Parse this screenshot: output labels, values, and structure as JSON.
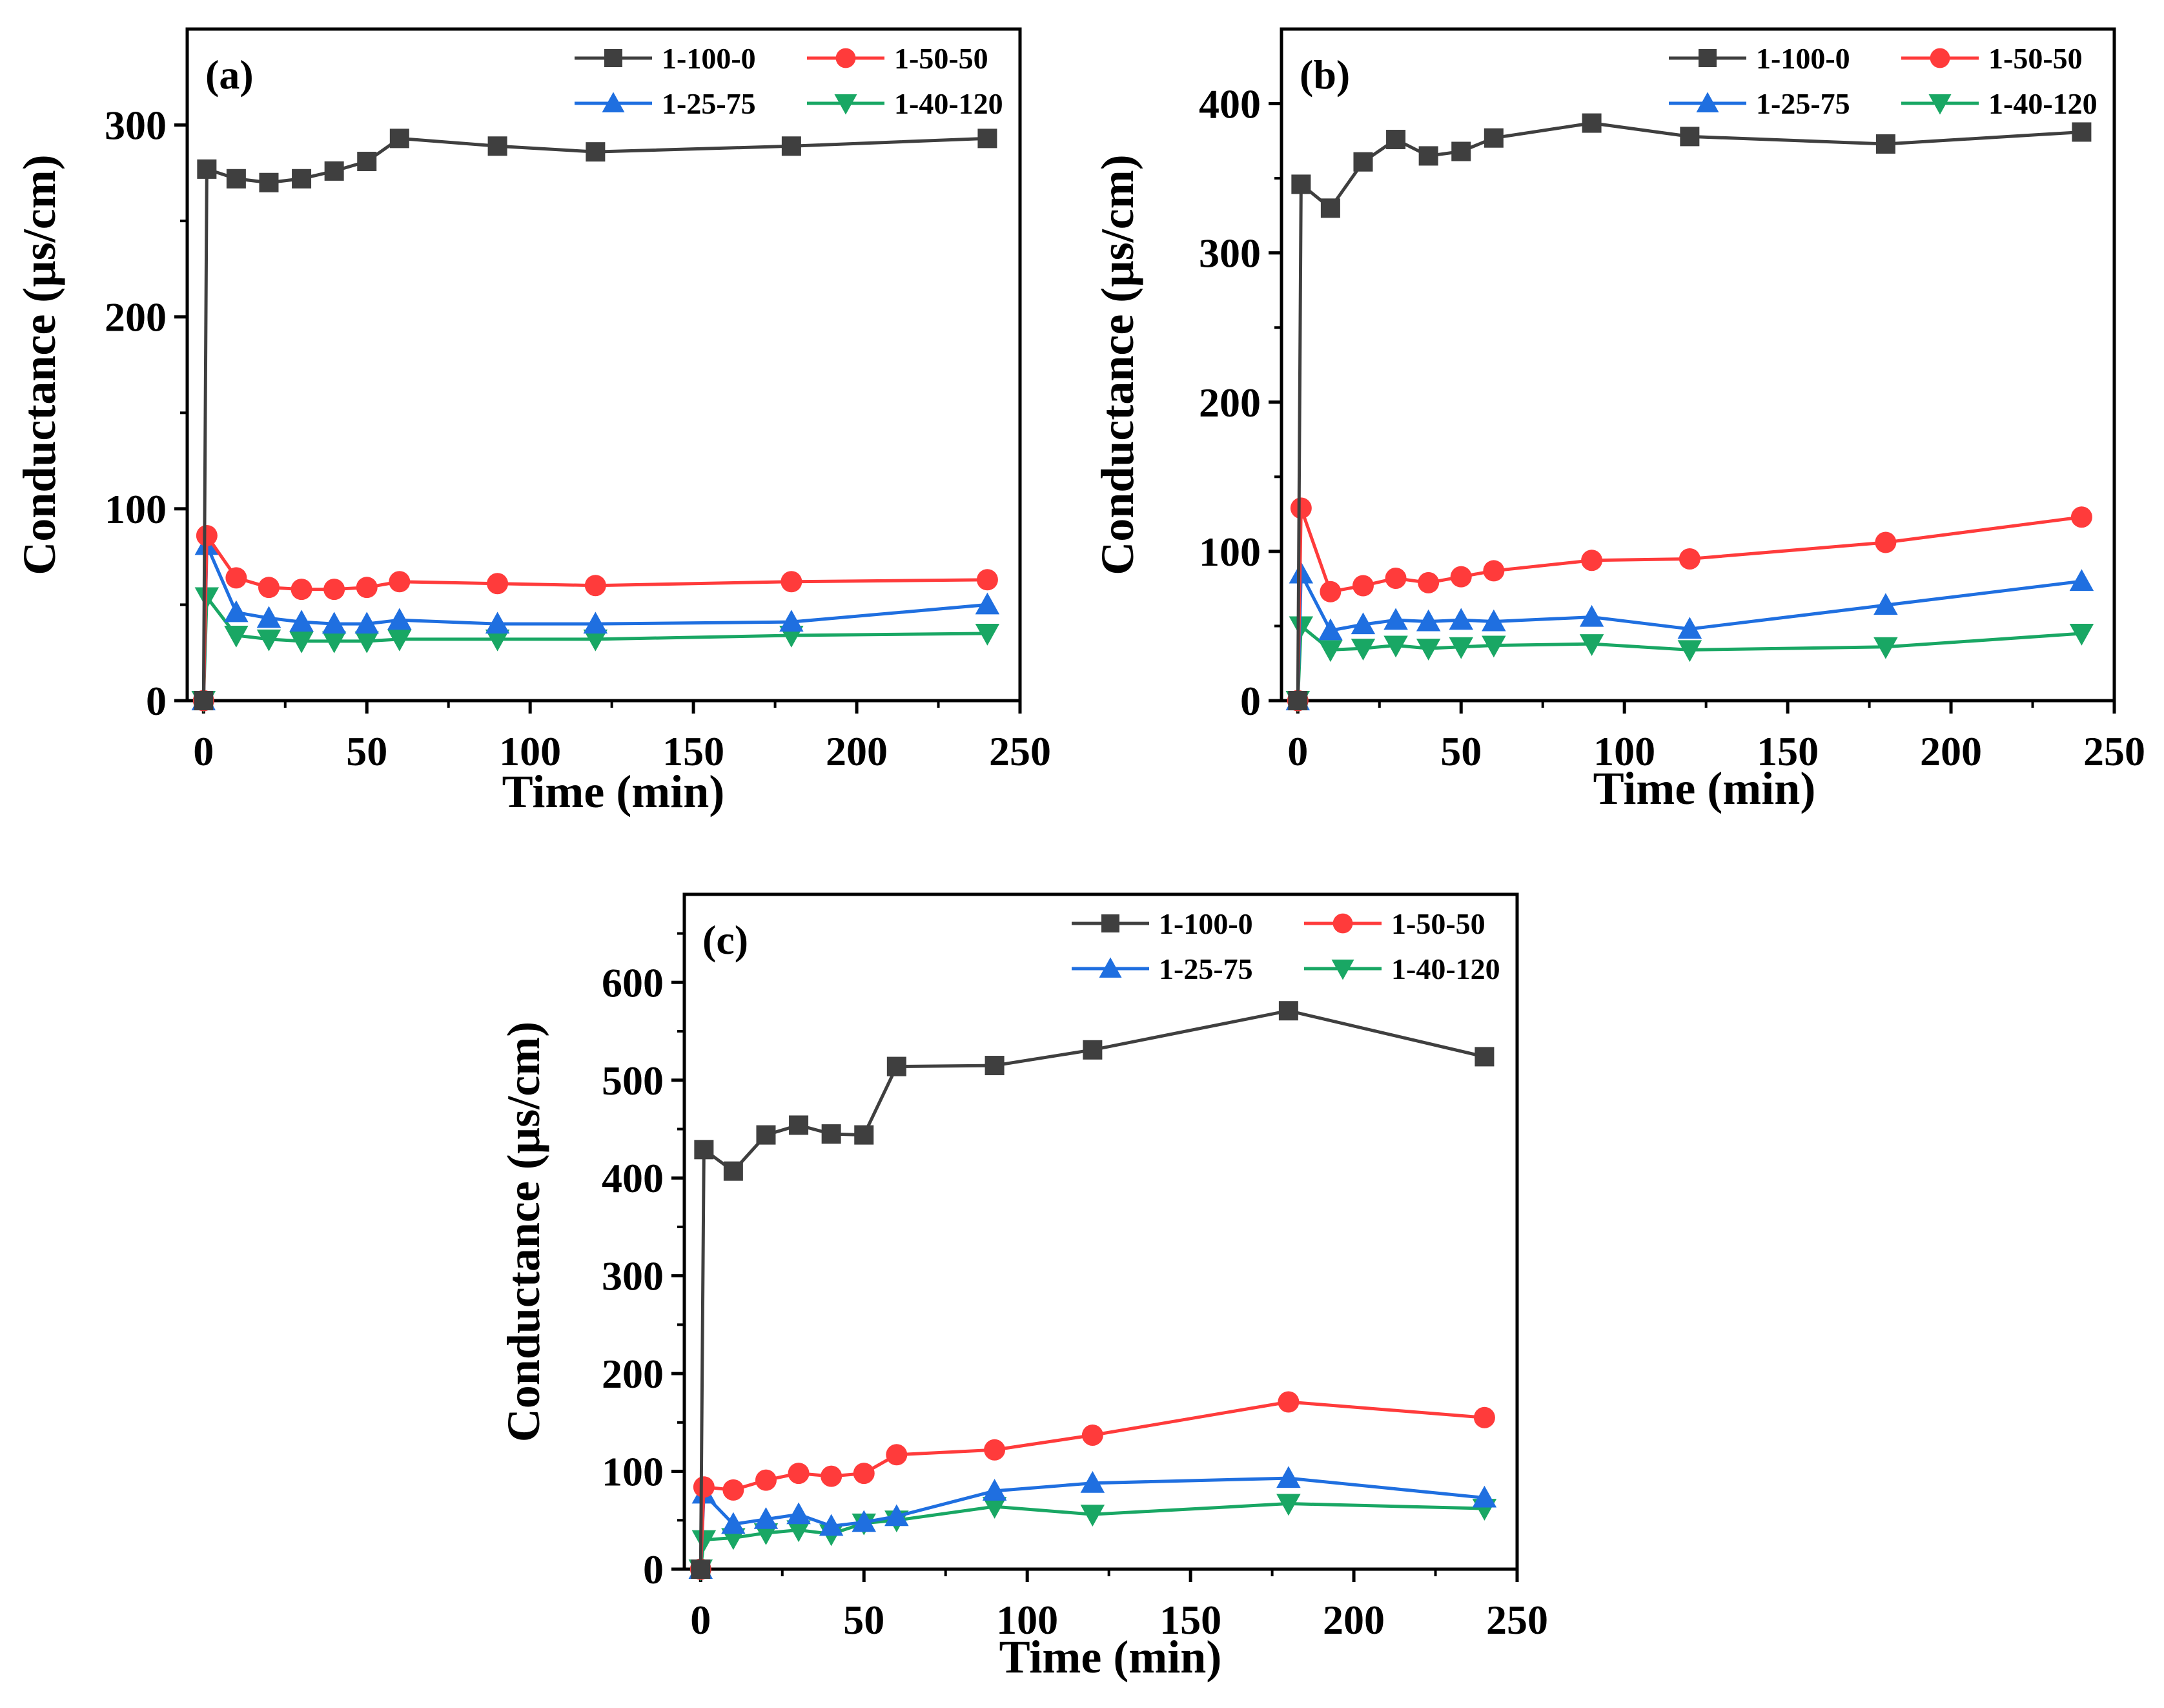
{
  "figure": {
    "colors": {
      "1-100-0": "#3f3f3f",
      "1-50-50": "#ff3b3b",
      "1-25-75": "#1f6fe0",
      "1-40-120": "#19a764"
    },
    "markers": {
      "1-100-0": "square",
      "1-50-50": "circle",
      "1-25-75": "triangle-up",
      "1-40-120": "triangle-down"
    }
  },
  "chart_data": [
    {
      "type": "line",
      "panel_label": "(a)",
      "xlabel": "Time (min)",
      "ylabel": "Conductance (µs/cm)",
      "xlim": [
        -5,
        250
      ],
      "ylim": [
        0,
        350
      ],
      "xticks": [
        0,
        50,
        100,
        150,
        200,
        250
      ],
      "yticks": [
        0,
        100,
        200,
        300
      ],
      "legend_position": "top-right",
      "series": [
        {
          "name": "1-100-0",
          "x": [
            0,
            1,
            10,
            20,
            30,
            40,
            50,
            60,
            90,
            120,
            180,
            240
          ],
          "values": [
            0,
            277,
            272,
            270,
            272,
            276,
            281,
            293,
            289,
            286,
            289,
            293
          ]
        },
        {
          "name": "1-50-50",
          "x": [
            0,
            1,
            10,
            20,
            30,
            40,
            50,
            60,
            90,
            120,
            180,
            240
          ],
          "values": [
            0,
            86,
            64,
            59,
            58,
            58,
            59,
            62,
            61,
            60,
            62,
            63
          ]
        },
        {
          "name": "1-25-75",
          "x": [
            0,
            1,
            10,
            20,
            30,
            40,
            50,
            60,
            90,
            120,
            180,
            240
          ],
          "values": [
            0,
            81,
            46,
            43,
            41,
            40,
            40,
            42,
            40,
            40,
            41,
            50
          ]
        },
        {
          "name": "1-40-120",
          "x": [
            0,
            1,
            10,
            20,
            30,
            40,
            50,
            60,
            90,
            120,
            180,
            240
          ],
          "values": [
            0,
            54,
            34,
            32,
            31,
            31,
            31,
            32,
            32,
            32,
            34,
            35
          ]
        }
      ]
    },
    {
      "type": "line",
      "panel_label": "(b)",
      "xlabel": "Time (min)",
      "ylabel": "Conductance (µs/cm)",
      "xlim": [
        -5,
        250
      ],
      "ylim": [
        0,
        450
      ],
      "xticks": [
        0,
        50,
        100,
        150,
        200,
        250
      ],
      "yticks": [
        0,
        100,
        200,
        300,
        400
      ],
      "legend_position": "top-right",
      "series": [
        {
          "name": "1-100-0",
          "x": [
            0,
            1,
            10,
            20,
            30,
            40,
            50,
            60,
            90,
            120,
            180,
            240
          ],
          "values": [
            0,
            346,
            330,
            361,
            376,
            365,
            368,
            377,
            387,
            378,
            373,
            381
          ]
        },
        {
          "name": "1-50-50",
          "x": [
            0,
            1,
            10,
            20,
            30,
            40,
            50,
            60,
            90,
            120,
            180,
            240
          ],
          "values": [
            0,
            129,
            73,
            77,
            82,
            79,
            83,
            87,
            94,
            95,
            106,
            123
          ]
        },
        {
          "name": "1-25-75",
          "x": [
            0,
            1,
            10,
            20,
            30,
            40,
            50,
            60,
            90,
            120,
            180,
            240
          ],
          "values": [
            0,
            85,
            47,
            51,
            54,
            53,
            54,
            53,
            56,
            48,
            64,
            80
          ]
        },
        {
          "name": "1-40-120",
          "x": [
            0,
            1,
            10,
            20,
            30,
            40,
            50,
            60,
            90,
            120,
            180,
            240
          ],
          "values": [
            0,
            50,
            34,
            35,
            37,
            35,
            36,
            37,
            38,
            34,
            36,
            45
          ]
        }
      ]
    },
    {
      "type": "line",
      "panel_label": "(c)",
      "xlabel": "Time (min)",
      "ylabel": "Conductance (µs/cm)",
      "xlim": [
        -5,
        250
      ],
      "ylim": [
        0,
        690
      ],
      "xticks": [
        0,
        50,
        100,
        150,
        200,
        250
      ],
      "yticks": [
        0,
        100,
        200,
        300,
        400,
        500,
        600
      ],
      "legend_position": "top-right",
      "series": [
        {
          "name": "1-100-0",
          "x": [
            0,
            1,
            10,
            20,
            30,
            40,
            50,
            60,
            90,
            120,
            180,
            240
          ],
          "values": [
            0,
            429,
            407,
            444,
            454,
            445,
            444,
            514,
            515,
            531,
            571,
            524
          ]
        },
        {
          "name": "1-50-50",
          "x": [
            0,
            1,
            10,
            20,
            30,
            40,
            50,
            60,
            90,
            120,
            180,
            240
          ],
          "values": [
            0,
            84,
            81,
            91,
            98,
            95,
            98,
            117,
            122,
            137,
            171,
            155
          ]
        },
        {
          "name": "1-25-75",
          "x": [
            0,
            1,
            10,
            20,
            30,
            40,
            50,
            60,
            90,
            120,
            180,
            240
          ],
          "values": [
            0,
            77,
            46,
            51,
            56,
            44,
            48,
            54,
            80,
            88,
            93,
            73
          ]
        },
        {
          "name": "1-40-120",
          "x": [
            0,
            1,
            10,
            20,
            30,
            40,
            50,
            60,
            90,
            120,
            180,
            240
          ],
          "values": [
            0,
            30,
            32,
            37,
            40,
            36,
            47,
            50,
            64,
            56,
            67,
            62
          ]
        }
      ]
    }
  ]
}
